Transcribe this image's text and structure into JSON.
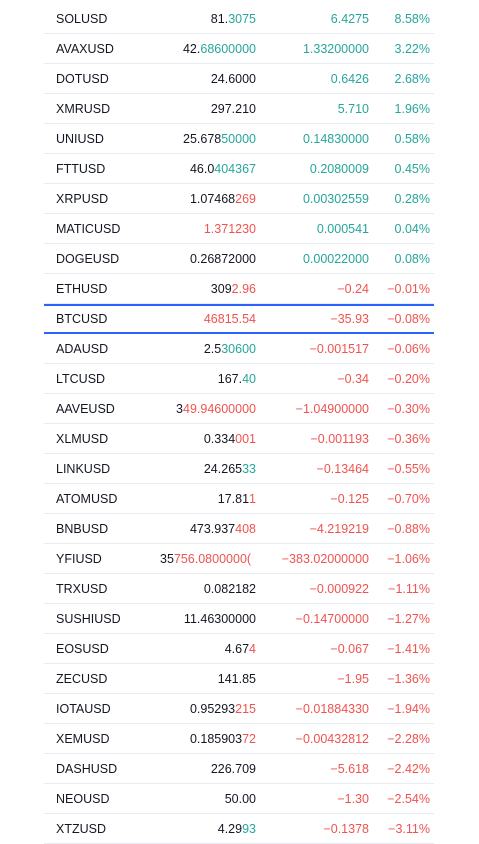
{
  "colors": {
    "up": "#26a69a",
    "down": "#ef5350",
    "selected_border": "#2962ff",
    "text": "#131722"
  },
  "rows": [
    {
      "symbol": "SOLUSD",
      "last_base": "81.",
      "last_hl": "3075",
      "last_dir": "up",
      "change": "6.4275",
      "pct": "8.58%",
      "dir": "up"
    },
    {
      "symbol": "AVAXUSD",
      "last_base": "42.",
      "last_hl": "68600000",
      "last_dir": "up",
      "change": "1.33200000",
      "pct": "3.22%",
      "dir": "up"
    },
    {
      "symbol": "DOTUSD",
      "last_base": "24.6000",
      "last_hl": "",
      "last_dir": "up",
      "change": "0.6426",
      "pct": "2.68%",
      "dir": "up"
    },
    {
      "symbol": "XMRUSD",
      "last_base": "297.210",
      "last_hl": "",
      "last_dir": "up",
      "change": "5.710",
      "pct": "1.96%",
      "dir": "up"
    },
    {
      "symbol": "UNIUSD",
      "last_base": "25.678",
      "last_hl": "50000",
      "last_dir": "up",
      "change": "0.14830000",
      "pct": "0.58%",
      "dir": "up"
    },
    {
      "symbol": "FTTUSD",
      "last_base": "46.0",
      "last_hl": "404367",
      "last_dir": "up",
      "change": "0.2080009",
      "pct": "0.45%",
      "dir": "up"
    },
    {
      "symbol": "XRPUSD",
      "last_base": "1.07468",
      "last_hl": "269",
      "last_dir": "down",
      "change": "0.00302559",
      "pct": "0.28%",
      "dir": "up"
    },
    {
      "symbol": "MATICUSD",
      "last_base": "",
      "last_hl": "1.371230",
      "last_dir": "down",
      "change": "0.000541",
      "pct": "0.04%",
      "dir": "up"
    },
    {
      "symbol": "DOGEUSD",
      "last_base": "0.26872000",
      "last_hl": "",
      "last_dir": "up",
      "change": "0.00022000",
      "pct": "0.08%",
      "dir": "up"
    },
    {
      "symbol": "ETHUSD",
      "last_base": "309",
      "last_hl": "2.96",
      "last_dir": "down",
      "change": "−0.24",
      "pct": "−0.01%",
      "dir": "down"
    },
    {
      "symbol": "BTCUSD",
      "last_base": "",
      "last_hl": "46815.54",
      "last_dir": "down",
      "change": "−35.93",
      "pct": "−0.08%",
      "dir": "down",
      "selected": true
    },
    {
      "symbol": "ADAUSD",
      "last_base": "2.5",
      "last_hl": "30600",
      "last_dir": "up",
      "change": "−0.001517",
      "pct": "−0.06%",
      "dir": "down"
    },
    {
      "symbol": "LTCUSD",
      "last_base": "167.",
      "last_hl": "40",
      "last_dir": "up",
      "change": "−0.34",
      "pct": "−0.20%",
      "dir": "down"
    },
    {
      "symbol": "AAVEUSD",
      "last_base": "3",
      "last_hl": "49.94600000",
      "last_dir": "down",
      "change": "−1.04900000",
      "pct": "−0.30%",
      "dir": "down"
    },
    {
      "symbol": "XLMUSD",
      "last_base": "0.334",
      "last_hl": "001",
      "last_dir": "down",
      "change": "−0.001193",
      "pct": "−0.36%",
      "dir": "down"
    },
    {
      "symbol": "LINKUSD",
      "last_base": "24.265",
      "last_hl": "33",
      "last_dir": "up",
      "change": "−0.13464",
      "pct": "−0.55%",
      "dir": "down"
    },
    {
      "symbol": "ATOMUSD",
      "last_base": "17.81",
      "last_hl": "1",
      "last_dir": "down",
      "change": "−0.125",
      "pct": "−0.70%",
      "dir": "down"
    },
    {
      "symbol": "BNBUSD",
      "last_base": "473.937",
      "last_hl": "408",
      "last_dir": "down",
      "change": "−4.219219",
      "pct": "−0.88%",
      "dir": "down"
    },
    {
      "symbol": "YFIUSD",
      "last_base": "35",
      "last_hl": "756.0800000(",
      "last_dir": "down",
      "change": "−383.02000000",
      "pct": "−1.06%",
      "dir": "down",
      "clipped": true
    },
    {
      "symbol": "TRXUSD",
      "last_base": "0.082182",
      "last_hl": "",
      "last_dir": "up",
      "change": "−0.000922",
      "pct": "−1.11%",
      "dir": "down"
    },
    {
      "symbol": "SUSHIUSD",
      "last_base": "11.46300000",
      "last_hl": "",
      "last_dir": "up",
      "change": "−0.14700000",
      "pct": "−1.27%",
      "dir": "down"
    },
    {
      "symbol": "EOSUSD",
      "last_base": "4.67",
      "last_hl": "4",
      "last_dir": "down",
      "change": "−0.067",
      "pct": "−1.41%",
      "dir": "down"
    },
    {
      "symbol": "ZECUSD",
      "last_base": "141.85",
      "last_hl": "",
      "last_dir": "up",
      "change": "−1.95",
      "pct": "−1.36%",
      "dir": "down"
    },
    {
      "symbol": "IOTAUSD",
      "last_base": "0.95293",
      "last_hl": "215",
      "last_dir": "down",
      "change": "−0.01884330",
      "pct": "−1.94%",
      "dir": "down"
    },
    {
      "symbol": "XEMUSD",
      "last_base": "0.185903",
      "last_hl": "72",
      "last_dir": "down",
      "change": "−0.00432812",
      "pct": "−2.28%",
      "dir": "down"
    },
    {
      "symbol": "DASHUSD",
      "last_base": "226.709",
      "last_hl": "",
      "last_dir": "up",
      "change": "−5.618",
      "pct": "−2.42%",
      "dir": "down"
    },
    {
      "symbol": "NEOUSD",
      "last_base": "50.00",
      "last_hl": "",
      "last_dir": "up",
      "change": "−1.30",
      "pct": "−2.54%",
      "dir": "down"
    },
    {
      "symbol": "XTZUSD",
      "last_base": "4.29",
      "last_hl": "93",
      "last_dir": "up",
      "change": "−0.1378",
      "pct": "−3.11%",
      "dir": "down"
    }
  ]
}
